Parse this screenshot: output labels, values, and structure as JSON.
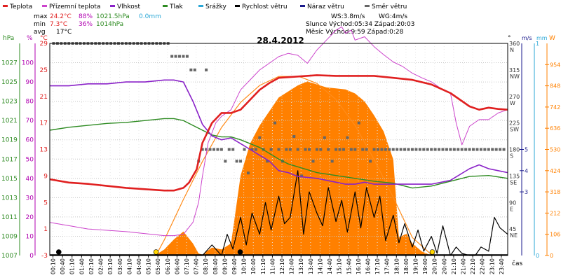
{
  "legend": [
    {
      "label": "Teplota",
      "color": "#e02020"
    },
    {
      "label": "Přízemní teplota",
      "color": "#cc44cc"
    },
    {
      "label": "Vlhkost",
      "color": "#8a22c8"
    },
    {
      "label": "Tlak",
      "color": "#2e8b22"
    },
    {
      "label": "Srážky",
      "color": "#2aa7d6"
    },
    {
      "label": "Rychlost větru",
      "color": "#000000"
    },
    {
      "label": "Náraz větru",
      "color": "#1a1a8c"
    },
    {
      "label": "Směr větru",
      "color": "#666666"
    }
  ],
  "stats": {
    "max": {
      "label": "max",
      "temp": "24.2°C",
      "hum": "88%",
      "press": "1021.5hPa",
      "rain": "0.0mm"
    },
    "min": {
      "label": "min",
      "temp": "7.3°C",
      "hum": "36%",
      "press": "1014hPa"
    },
    "avg": {
      "label": "avg",
      "temp": "17°C"
    }
  },
  "wind_info": {
    "ws": "WS:3.8m/s",
    "wg": "WG:4m/s",
    "sun": "Slunce Východ:05:34  Západ:20:03",
    "moon": "Měsíc  Východ:9:59  Západ:0:28"
  },
  "axis_headers": {
    "hpa": "hPa",
    "pct": "%",
    "degc": "°C",
    "deg": "°",
    "ms": "m/s",
    "mm": "mm",
    "w": "W"
  },
  "x_label": "čas",
  "colors": {
    "temp": "#e02020",
    "ground": "#cc44cc",
    "hum": "#8a22c8",
    "press": "#2e8b22",
    "wind": "#000000",
    "dir": "#666666",
    "solar_fill": "#ff8000",
    "solar_line": "#ff8c1a",
    "axis_hpa": "#2e8b22",
    "axis_pct": "#b000b0",
    "axis_degc": "#e02020",
    "axis_ms": "#1a1a8c",
    "axis_mm": "#2aa7d6",
    "axis_w": "#ff8000",
    "grid": "#c8c8c8"
  },
  "chart_data": {
    "type": "line",
    "title": "28.4.2012",
    "x_ticks": [
      "00:10",
      "00:40",
      "01:10",
      "01:40",
      "02:10",
      "02:40",
      "03:10",
      "03:40",
      "04:10",
      "04:40",
      "05:10",
      "05:40",
      "06:10",
      "06:40",
      "07:10",
      "07:40",
      "08:10",
      "08:40",
      "09:10",
      "09:40",
      "10:10",
      "10:40",
      "11:10",
      "11:40",
      "12:10",
      "12:40",
      "13:10",
      "13:40",
      "14:10",
      "14:40",
      "15:10",
      "15:40",
      "16:10",
      "16:40",
      "17:10",
      "17:40",
      "18:10",
      "18:40",
      "19:10",
      "19:40",
      "20:10",
      "20:40",
      "21:10",
      "21:40",
      "22:10",
      "22:40",
      "23:10",
      "23:40"
    ],
    "xlim": [
      0,
      24
    ],
    "axes": {
      "hpa": {
        "ticks": [
          1007,
          1009,
          1011,
          1013,
          1015,
          1017,
          1019,
          1021,
          1023,
          1025,
          1027
        ],
        "ylim": [
          1007,
          1029
        ]
      },
      "pct": {
        "ticks": [
          0,
          10,
          20,
          30,
          40,
          50,
          60,
          70,
          80,
          90,
          100
        ],
        "ylim": [
          0,
          110
        ]
      },
      "degc": {
        "ticks": [
          -3,
          1,
          5,
          9,
          13,
          17,
          21,
          25,
          29
        ],
        "ylim": [
          -3,
          29
        ]
      },
      "dir": {
        "ticks": [
          {
            "v": 45,
            "l": "45 NE"
          },
          {
            "v": 90,
            "l": "90 E"
          },
          {
            "v": 135,
            "l": "135 SE"
          },
          {
            "v": 180,
            "l": "180 S"
          },
          {
            "v": 225,
            "l": "225 SW"
          },
          {
            "v": 270,
            "l": "270 W"
          },
          {
            "v": 315,
            "l": "315 NW"
          },
          {
            "v": 360,
            "l": "360 N"
          }
        ],
        "ylim": [
          0,
          360
        ]
      },
      "ms": {
        "ticks": [
          3,
          4,
          5
        ],
        "ylim": [
          0,
          10
        ]
      },
      "mm": {
        "ticks": [
          0,
          1
        ],
        "ylim": [
          0,
          1
        ]
      },
      "w": {
        "ticks": [
          0,
          106,
          212,
          318,
          424,
          530,
          636,
          742,
          848,
          954
        ],
        "ylim": [
          0,
          1060
        ]
      }
    },
    "series": [
      {
        "name": "Teplota",
        "axis": "degc",
        "x": [
          0,
          1,
          2,
          3,
          4,
          5,
          6,
          6.5,
          7,
          7.3,
          7.7,
          8,
          8.5,
          9,
          9.5,
          10,
          10.5,
          11,
          11.5,
          12,
          13,
          14,
          15,
          16,
          17,
          18,
          19,
          20,
          21,
          21.5,
          22,
          22.5,
          23,
          23.5,
          24
        ],
        "y": [
          8.5,
          8,
          7.8,
          7.5,
          7.2,
          7,
          6.8,
          6.8,
          7.2,
          8,
          10,
          14,
          17,
          18.5,
          18.5,
          19,
          20.5,
          22,
          23,
          23.8,
          24,
          24.2,
          24.1,
          24.1,
          24.1,
          23.8,
          23.5,
          22.8,
          21.5,
          20.5,
          19.5,
          19,
          19.3,
          19.1,
          19
        ]
      },
      {
        "name": "Přízemní teplota",
        "axis": "degc",
        "x": [
          0,
          1,
          2,
          3,
          4,
          5,
          6,
          6.5,
          7,
          7.5,
          7.8,
          8,
          8.3,
          8.7,
          9,
          9.5,
          10,
          10.5,
          11,
          11.5,
          12,
          12.5,
          13,
          13.5,
          14,
          14.5,
          15,
          15.3,
          15.5,
          15.8,
          16,
          16.5,
          17,
          17.5,
          18,
          18.5,
          19,
          19.5,
          20,
          20.5,
          21,
          21.3,
          21.6,
          22,
          22.5,
          23,
          23.5,
          24
        ],
        "y": [
          2,
          1.5,
          1,
          0.8,
          0.6,
          0.3,
          0,
          0,
          0.2,
          2,
          5,
          9,
          14,
          17,
          18,
          19,
          22,
          23.5,
          25,
          26,
          27,
          27.5,
          27.2,
          26,
          28,
          29.5,
          31,
          31.5,
          30.5,
          31,
          29.5,
          30,
          28.5,
          27.3,
          26.2,
          25.5,
          24.5,
          23.8,
          23.2,
          22.2,
          21.5,
          17,
          13.7,
          16.5,
          17.5,
          17.5,
          18.5,
          19
        ]
      },
      {
        "name": "Vlhkost",
        "axis": "pct",
        "x": [
          0,
          1,
          2,
          3,
          4,
          5,
          6,
          6.5,
          7,
          7.5,
          8,
          8.5,
          9,
          9.5,
          10,
          10.5,
          11,
          11.5,
          12,
          12.5,
          13,
          14,
          15,
          15.5,
          16,
          16.5,
          17,
          18,
          19,
          20,
          21,
          22,
          22.5,
          23,
          23.5,
          24
        ],
        "y": [
          88,
          88,
          89,
          89,
          90,
          90,
          91,
          91,
          90,
          80,
          68,
          62,
          60,
          61,
          58,
          55,
          52,
          49,
          44,
          43,
          41,
          40,
          38,
          37,
          37,
          38,
          37,
          37,
          37,
          37,
          39,
          45,
          47,
          45,
          44,
          43
        ]
      },
      {
        "name": "Tlak",
        "axis": "hpa",
        "x": [
          0,
          1,
          2,
          3,
          4,
          5,
          6,
          6.5,
          7,
          7.5,
          8,
          8.5,
          9,
          9.5,
          10,
          10.5,
          11,
          11.5,
          12,
          12.5,
          13,
          14,
          15,
          16,
          17,
          18,
          19,
          20,
          21,
          22,
          23,
          24
        ],
        "y": [
          1020,
          1020.3,
          1020.5,
          1020.7,
          1020.8,
          1021,
          1021.2,
          1021.2,
          1021,
          1020.5,
          1020,
          1019.5,
          1019.3,
          1019.3,
          1019,
          1018.6,
          1018.2,
          1017.6,
          1017,
          1016.5,
          1016.2,
          1015.6,
          1015.3,
          1015,
          1014.7,
          1014.5,
          1014,
          1014.2,
          1014.7,
          1015.2,
          1015.3,
          1015
        ]
      },
      {
        "name": "Rychlost větru",
        "axis": "ms",
        "x": [
          0,
          1,
          2,
          3,
          4,
          5,
          6,
          7,
          8,
          8.5,
          9,
          9.3,
          9.6,
          10,
          10.3,
          10.6,
          11,
          11.3,
          11.6,
          12,
          12.3,
          12.6,
          13,
          13.3,
          13.6,
          14,
          14.3,
          14.6,
          15,
          15.3,
          15.6,
          16,
          16.3,
          16.6,
          17,
          17.3,
          17.6,
          18,
          18.3,
          18.6,
          19,
          19.3,
          19.6,
          20,
          20.3,
          20.6,
          21,
          21.3,
          21.6,
          22,
          22.3,
          22.6,
          23,
          23.3,
          23.6,
          24
        ],
        "y": [
          0,
          0,
          0,
          0,
          0,
          0,
          0,
          0,
          0,
          0.5,
          0,
          1,
          0.3,
          1.8,
          0.5,
          2,
          1,
          2.5,
          1.2,
          2.8,
          1.5,
          1.8,
          4,
          1,
          3,
          2,
          1.4,
          3.2,
          1.6,
          2.6,
          1.1,
          3,
          1.3,
          3.2,
          1.8,
          2.8,
          0.7,
          1.9,
          0.6,
          1.5,
          0.4,
          1.2,
          0.2,
          0.9,
          0.1,
          1.4,
          0,
          0.4,
          0.1,
          0,
          0,
          0.4,
          0.2,
          1.8,
          1.3,
          1
        ]
      }
    ],
    "solar": {
      "name": "Solar",
      "axis": "w",
      "x": [
        0,
        5.5,
        6,
        6.5,
        7,
        7.5,
        7.8,
        8,
        8.5,
        9,
        9.5,
        10,
        10.5,
        11,
        11.5,
        12,
        12.5,
        13,
        13.5,
        14,
        14.5,
        15,
        15.5,
        16,
        16.5,
        17,
        17.5,
        18,
        18.3,
        18.7,
        19,
        19.5,
        20,
        24
      ],
      "y": [
        0,
        0,
        30,
        80,
        120,
        60,
        10,
        5,
        40,
        30,
        60,
        400,
        560,
        650,
        720,
        790,
        820,
        850,
        870,
        855,
        840,
        835,
        830,
        810,
        770,
        700,
        620,
        480,
        90,
        110,
        60,
        20,
        0,
        0
      ]
    },
    "solar_theory": {
      "name": "Solar theory",
      "axis": "w",
      "x": [
        5.56,
        6,
        7,
        8,
        9,
        10,
        11,
        12,
        13,
        13.2,
        14,
        15,
        16,
        17,
        18,
        19,
        20.05
      ],
      "y": [
        0,
        78,
        280,
        470,
        640,
        765,
        850,
        895,
        895,
        890,
        860,
        780,
        650,
        480,
        290,
        90,
        0
      ]
    },
    "wind_dir": {
      "name": "Směr větru",
      "axis": "dir",
      "points": [
        [
          0.2,
          360
        ],
        [
          0.4,
          360
        ],
        [
          0.6,
          360
        ],
        [
          0.8,
          360
        ],
        [
          1,
          360
        ],
        [
          1.2,
          360
        ],
        [
          1.4,
          360
        ],
        [
          1.6,
          360
        ],
        [
          1.8,
          360
        ],
        [
          2,
          360
        ],
        [
          2.2,
          360
        ],
        [
          2.4,
          360
        ],
        [
          2.6,
          360
        ],
        [
          2.8,
          360
        ],
        [
          3,
          360
        ],
        [
          3.2,
          360
        ],
        [
          3.4,
          360
        ],
        [
          3.6,
          360
        ],
        [
          3.8,
          360
        ],
        [
          4,
          360
        ],
        [
          4.2,
          360
        ],
        [
          4.4,
          360
        ],
        [
          4.6,
          360
        ],
        [
          4.8,
          360
        ],
        [
          5,
          360
        ],
        [
          5.2,
          360
        ],
        [
          5.4,
          360
        ],
        [
          5.6,
          360
        ],
        [
          5.8,
          360
        ],
        [
          6,
          360
        ],
        [
          6.2,
          360
        ],
        [
          6.4,
          338
        ],
        [
          6.6,
          338
        ],
        [
          6.8,
          338
        ],
        [
          7,
          338
        ],
        [
          7.2,
          338
        ],
        [
          7.4,
          315
        ],
        [
          7.6,
          315
        ],
        [
          8.2,
          315
        ],
        [
          7.8,
          160
        ],
        [
          8,
          180
        ],
        [
          8.2,
          180
        ],
        [
          8.4,
          180
        ],
        [
          8.6,
          180
        ],
        [
          8.8,
          180
        ],
        [
          9,
          180
        ],
        [
          9.2,
          160
        ],
        [
          9.4,
          180
        ],
        [
          9.6,
          180
        ],
        [
          9.8,
          160
        ],
        [
          10,
          160
        ],
        [
          10.2,
          180
        ],
        [
          10.4,
          140
        ],
        [
          10.6,
          180
        ],
        [
          10.8,
          180
        ],
        [
          11,
          200
        ],
        [
          11.2,
          180
        ],
        [
          11.4,
          160
        ],
        [
          11.6,
          180
        ],
        [
          11.8,
          225
        ],
        [
          12,
          180
        ],
        [
          12.2,
          160
        ],
        [
          12.4,
          180
        ],
        [
          12.6,
          180
        ],
        [
          12.8,
          202
        ],
        [
          13,
          180
        ],
        [
          13.2,
          135
        ],
        [
          13.4,
          180
        ],
        [
          13.6,
          180
        ],
        [
          13.8,
          160
        ],
        [
          14,
          180
        ],
        [
          14.2,
          180
        ],
        [
          14.4,
          200
        ],
        [
          14.6,
          180
        ],
        [
          14.8,
          160
        ],
        [
          15,
          180
        ],
        [
          15.2,
          180
        ],
        [
          15.4,
          180
        ],
        [
          15.6,
          200
        ],
        [
          15.8,
          180
        ],
        [
          16,
          180
        ],
        [
          16.2,
          225
        ],
        [
          16.4,
          180
        ],
        [
          16.6,
          180
        ],
        [
          16.8,
          160
        ],
        [
          17,
          180
        ],
        [
          17.2,
          180
        ],
        [
          17.4,
          180
        ],
        [
          17.6,
          180
        ],
        [
          17.8,
          180
        ],
        [
          18,
          180
        ],
        [
          18.2,
          180
        ],
        [
          18.4,
          180
        ],
        [
          18.6,
          180
        ],
        [
          18.8,
          180
        ],
        [
          19,
          180
        ],
        [
          19.2,
          180
        ],
        [
          19.4,
          180
        ],
        [
          19.6,
          180
        ],
        [
          19.8,
          180
        ],
        [
          20,
          180
        ],
        [
          20.2,
          180
        ],
        [
          20.4,
          180
        ],
        [
          20.6,
          180
        ],
        [
          20.8,
          180
        ],
        [
          21,
          180
        ],
        [
          21.2,
          180
        ],
        [
          21.4,
          180
        ],
        [
          21.6,
          180
        ],
        [
          21.8,
          180
        ],
        [
          22,
          180
        ],
        [
          22.2,
          180
        ],
        [
          22.4,
          180
        ],
        [
          22.6,
          180
        ],
        [
          22.8,
          180
        ],
        [
          23,
          180
        ],
        [
          23.2,
          180
        ],
        [
          23.4,
          180
        ],
        [
          23.6,
          180
        ],
        [
          23.8,
          180
        ]
      ]
    }
  },
  "markers": [
    {
      "name": "moon-set-icon",
      "x": 0.47,
      "color": "#000000"
    },
    {
      "name": "sunrise-icon",
      "x": 5.57,
      "color": "#ffd400"
    },
    {
      "name": "moon-rise-icon",
      "x": 9.98,
      "color": "#000000"
    },
    {
      "name": "sunset-icon",
      "x": 20.05,
      "color": "#ffd400"
    }
  ]
}
